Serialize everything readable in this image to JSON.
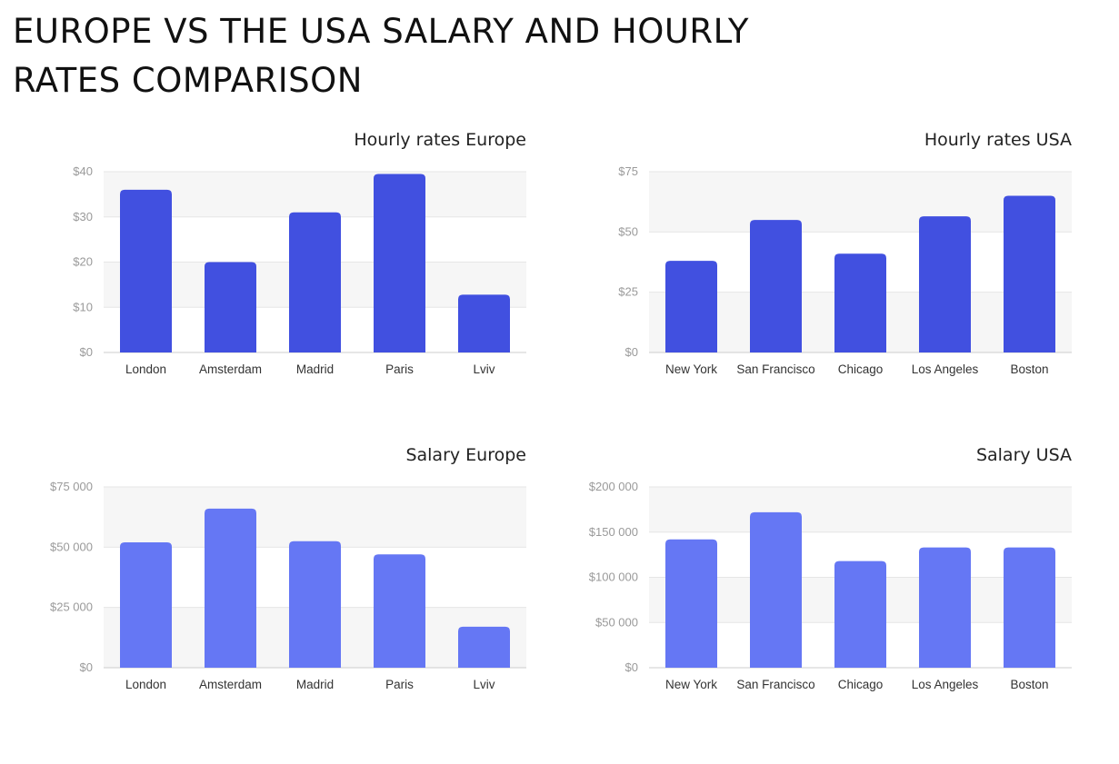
{
  "page": {
    "title_line1": "EUROPE VS THE USA SALARY AND HOURLY",
    "title_line2": "RATES COMPARISON"
  },
  "colors": {
    "hourly_bar": "#4150e0",
    "salary_bar": "#6577f4"
  },
  "chart_data": [
    {
      "id": "hourly-europe",
      "type": "bar",
      "title": "Hourly rates Europe",
      "categories": [
        "London",
        "Amsterdam",
        "Madrid",
        "Paris",
        "Lviv"
      ],
      "values": [
        36,
        20,
        31,
        39.5,
        12.8
      ],
      "ylim": [
        0,
        40
      ],
      "yticks": [
        0,
        10,
        20,
        30,
        40
      ],
      "ytick_labels": [
        "$0",
        "$10",
        "$20",
        "$30",
        "$40"
      ],
      "xlabel": "",
      "ylabel": "",
      "grid": true
    },
    {
      "id": "hourly-usa",
      "type": "bar",
      "title": "Hourly rates USA",
      "categories": [
        "New York",
        "San Francisco",
        "Chicago",
        "Los Angeles",
        "Boston"
      ],
      "values": [
        38,
        55,
        41,
        56.5,
        65
      ],
      "ylim": [
        0,
        75
      ],
      "yticks": [
        0,
        25,
        50,
        75
      ],
      "ytick_labels": [
        "$0",
        "$25",
        "$50",
        "$75"
      ],
      "xlabel": "",
      "ylabel": "",
      "grid": true
    },
    {
      "id": "salary-europe",
      "type": "bar",
      "title": "Salary Europe",
      "categories": [
        "London",
        "Amsterdam",
        "Madrid",
        "Paris",
        "Lviv"
      ],
      "values": [
        52000,
        66000,
        52500,
        47000,
        17000
      ],
      "ylim": [
        0,
        75000
      ],
      "yticks": [
        0,
        25000,
        50000,
        75000
      ],
      "ytick_labels": [
        "$0",
        "$25 000",
        "$50 000",
        "$75 000"
      ],
      "xlabel": "",
      "ylabel": "",
      "grid": true
    },
    {
      "id": "salary-usa",
      "type": "bar",
      "title": "Salary USA",
      "categories": [
        "New York",
        "San Francisco",
        "Chicago",
        "Los Angeles",
        "Boston"
      ],
      "values": [
        142000,
        172000,
        118000,
        133000,
        133000
      ],
      "ylim": [
        0,
        200000
      ],
      "yticks": [
        0,
        50000,
        100000,
        150000,
        200000
      ],
      "ytick_labels": [
        "$0",
        "$50 000",
        "$100 000",
        "$150 000",
        "$200 000"
      ],
      "xlabel": "",
      "ylabel": "",
      "grid": true
    }
  ]
}
